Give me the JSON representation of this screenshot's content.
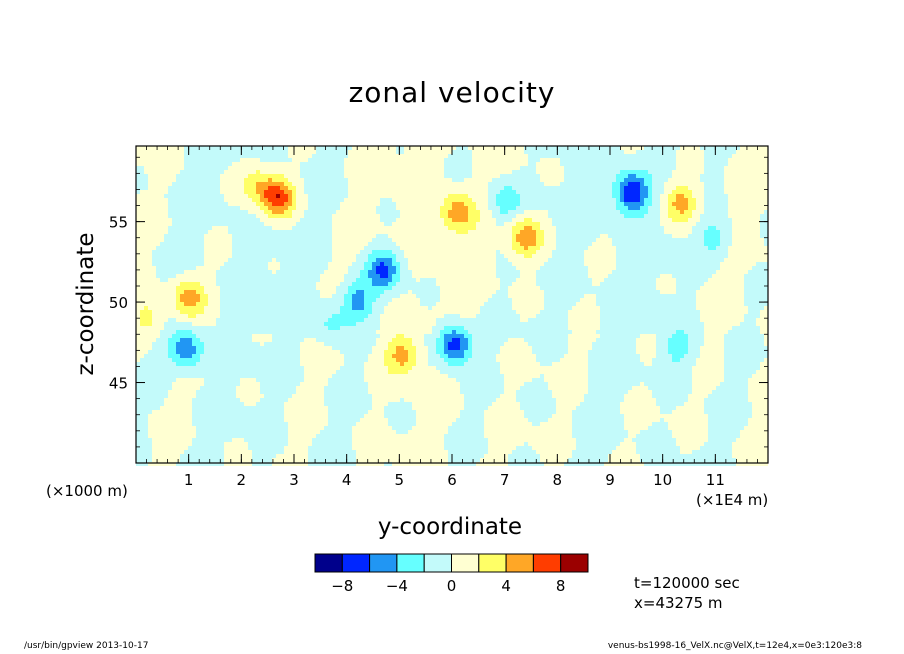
{
  "chart_data": {
    "type": "heatmap",
    "title": "zonal velocity",
    "xlabel": "y-coordinate",
    "ylabel": "z-coordinate",
    "x_scale_note": "(×1000 m)",
    "x_units_note": "(×1E4 m)",
    "xlim": [
      0,
      12
    ],
    "ylim": [
      40,
      59.7
    ],
    "x_ticks": [
      1,
      2,
      3,
      4,
      5,
      6,
      7,
      8,
      9,
      10,
      11
    ],
    "x_tick_labels": [
      "1",
      "2",
      "3",
      "4",
      "5",
      "6",
      "7",
      "8",
      "9",
      "10",
      "11"
    ],
    "y_ticks": [
      45,
      50,
      55
    ],
    "y_tick_labels": [
      "45",
      "50",
      "55"
    ],
    "colorbar": {
      "levels": [
        -10,
        -8,
        -6,
        -4,
        -2,
        0,
        2,
        4,
        6,
        8,
        10
      ],
      "colors": [
        "#00008b",
        "#0026ff",
        "#2196f3",
        "#66ffff",
        "#c3fafa",
        "#ffffd2",
        "#ffff66",
        "#ffa726",
        "#ff3d00",
        "#9b0000"
      ],
      "tick_values": [
        -8,
        -4,
        0,
        4,
        8
      ],
      "tick_labels": [
        "−8",
        "−4",
        "0",
        "4",
        "8"
      ]
    },
    "features": [
      {
        "kind": "max",
        "x": 2.7,
        "y": 56.5,
        "amp": 7.5
      },
      {
        "kind": "max",
        "x": 2.3,
        "y": 57.3,
        "amp": 3.5
      },
      {
        "kind": "max",
        "x": 1.0,
        "y": 50.3,
        "amp": 5.0
      },
      {
        "kind": "max",
        "x": 6.1,
        "y": 55.5,
        "amp": 5.0
      },
      {
        "kind": "max",
        "x": 7.4,
        "y": 54.0,
        "amp": 5.5
      },
      {
        "kind": "max",
        "x": 10.35,
        "y": 56.2,
        "amp": 5.0
      },
      {
        "kind": "max",
        "x": 5.05,
        "y": 46.7,
        "amp": 5.0
      },
      {
        "kind": "max",
        "x": 0.25,
        "y": 49.0,
        "amp": 2.8
      },
      {
        "kind": "min",
        "x": 9.4,
        "y": 56.8,
        "amp": 8.0
      },
      {
        "kind": "min",
        "x": 6.05,
        "y": 47.4,
        "amp": 8.0
      },
      {
        "kind": "min",
        "x": 4.7,
        "y": 52.0,
        "amp": 6.5
      },
      {
        "kind": "min",
        "x": 4.2,
        "y": 50.1,
        "amp": 5.0
      },
      {
        "kind": "min",
        "x": 0.95,
        "y": 47.0,
        "amp": 6.0
      },
      {
        "kind": "min",
        "x": 7.0,
        "y": 56.2,
        "amp": 3.5
      },
      {
        "kind": "min",
        "x": 11.0,
        "y": 54.0,
        "amp": 3.0
      },
      {
        "kind": "min",
        "x": 10.3,
        "y": 47.1,
        "amp": 3.0
      },
      {
        "kind": "min",
        "x": 3.7,
        "y": 48.6,
        "amp": 2.5
      }
    ]
  },
  "annotations": {
    "time": "t=120000 sec",
    "position": "x=43275 m"
  },
  "footer": {
    "left": "/usr/bin/gpview   2013-10-17",
    "right": "venus-bs1998-16_VelX.nc@VelX,t=12e4,x=0e3:120e3:8"
  }
}
